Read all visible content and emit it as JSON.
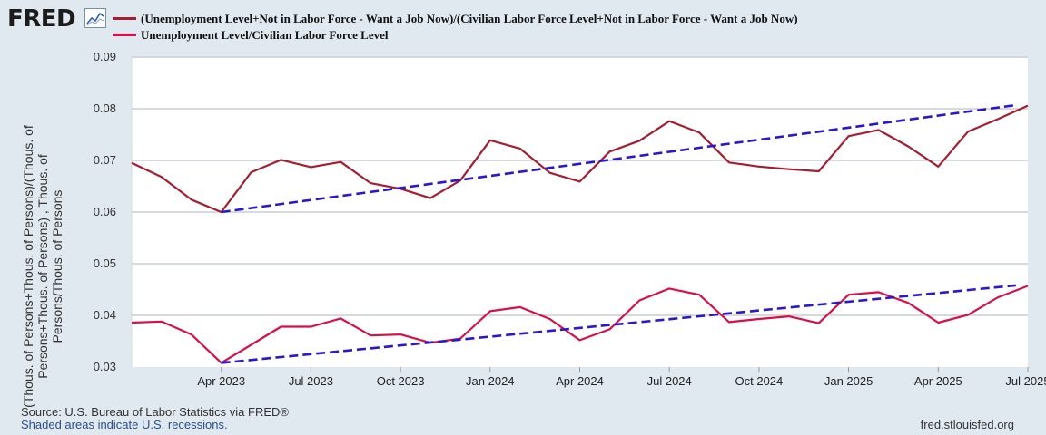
{
  "header": {
    "logo_text": "FRED",
    "logo_icon": "line-chart-icon",
    "legend": [
      {
        "label": "(Unemployment Level+Not in Labor Force - Want a Job Now)/(Civilian Labor Force Level+Not in Labor Force - Want a Job Now)",
        "color": "#a41e32"
      },
      {
        "label": "Unemployment Level/Civilian Labor Force Level",
        "color": "#d90f48"
      }
    ]
  },
  "chart_data": {
    "type": "line",
    "title": "",
    "ylabel": "(Thous. of Persons+Thous. of Persons)/(Thous. of Persons+Thous. of Persons) , Thous. of Persons/Thous. of Persons",
    "xlabel": "",
    "ylim": [
      0.03,
      0.09
    ],
    "yticks": [
      0.03,
      0.04,
      0.05,
      0.06,
      0.07,
      0.08,
      0.09
    ],
    "ytick_labels": [
      "0.03",
      "0.04",
      "0.05",
      "0.06",
      "0.07",
      "0.08",
      "0.09"
    ],
    "xticks": [
      {
        "i": 3,
        "label": "Apr 2023"
      },
      {
        "i": 6,
        "label": "Jul 2023"
      },
      {
        "i": 9,
        "label": "Oct 2023"
      },
      {
        "i": 12,
        "label": "Jan 2024"
      },
      {
        "i": 15,
        "label": "Apr 2024"
      },
      {
        "i": 18,
        "label": "Jul 2024"
      },
      {
        "i": 21,
        "label": "Oct 2024"
      },
      {
        "i": 24,
        "label": "Jan 2025"
      },
      {
        "i": 27,
        "label": "Apr 2025"
      },
      {
        "i": 30,
        "label": "Jul 2025"
      }
    ],
    "x_count": 31,
    "series": [
      {
        "name": "(Unemployment Level+Not in Labor Force - Want a Job Now)/(Civilian Labor Force Level+Not in Labor Force - Want a Job Now)",
        "color": "#a41e32",
        "values": [
          0.0695,
          0.0668,
          0.0624,
          0.06,
          0.0677,
          0.0701,
          0.0687,
          0.0697,
          0.0656,
          0.0645,
          0.0627,
          0.0661,
          0.0739,
          0.0723,
          0.0676,
          0.0659,
          0.0717,
          0.0738,
          0.0776,
          0.0754,
          0.0696,
          0.0688,
          0.0683,
          0.0679,
          0.0747,
          0.0759,
          0.0727,
          0.0688,
          0.0756,
          0.078,
          0.0806
        ]
      },
      {
        "name": "Unemployment Level/Civilian Labor Force Level",
        "color": "#d90f48",
        "values": [
          0.0386,
          0.0388,
          0.0363,
          0.0308,
          0.0343,
          0.0378,
          0.0378,
          0.0394,
          0.0361,
          0.0363,
          0.0347,
          0.0355,
          0.0408,
          0.0416,
          0.0393,
          0.0352,
          0.0373,
          0.0429,
          0.0452,
          0.044,
          0.0387,
          0.0393,
          0.0398,
          0.0385,
          0.044,
          0.0445,
          0.0424,
          0.0386,
          0.0401,
          0.0435,
          0.0457
        ]
      }
    ],
    "trendlines": [
      {
        "color": "#2b18c8",
        "x_start": 3,
        "y_start": 0.06,
        "x_end": 29.6,
        "y_end": 0.0807
      },
      {
        "color": "#2b18c8",
        "x_start": 3,
        "y_start": 0.0308,
        "x_end": 29.6,
        "y_end": 0.0458
      }
    ]
  },
  "footer": {
    "source": "Source: U.S. Bureau of Labor Statistics via FRED®",
    "recessions": "Shaded areas indicate U.S. recessions.",
    "site": "fred.stlouisfed.org"
  }
}
